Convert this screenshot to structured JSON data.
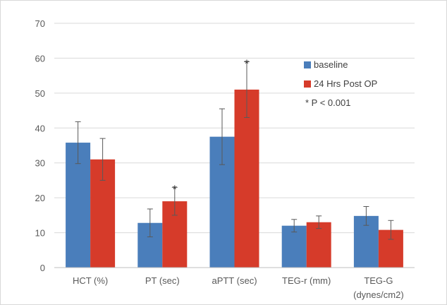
{
  "chart_data": {
    "type": "bar",
    "title": "",
    "xlabel": "",
    "ylabel": "",
    "ylim": [
      0,
      70
    ],
    "yticks": [
      0,
      10,
      20,
      30,
      40,
      50,
      60,
      70
    ],
    "grid": true,
    "categories": [
      "HCT (%)",
      "PT (sec)",
      "aPTT (sec)",
      "TEG-r (mm)",
      "TEG-G (dynes/cm2)"
    ],
    "category_lines": [
      [
        "HCT (%)"
      ],
      [
        "PT (sec)"
      ],
      [
        "aPTT (sec)"
      ],
      [
        "TEG-r (mm)"
      ],
      [
        "TEG-G",
        "(dynes/cm2)"
      ]
    ],
    "series": [
      {
        "name": "baseline",
        "color": "#4a7ebb",
        "values": [
          35.8,
          12.8,
          37.5,
          12.0,
          14.8
        ],
        "error": [
          6.0,
          4.0,
          8.0,
          1.8,
          2.7
        ]
      },
      {
        "name": "24 Hrs Post OP",
        "color": "#d63b2a",
        "values": [
          31.0,
          19.0,
          51.0,
          13.0,
          10.8
        ],
        "error": [
          6.0,
          4.0,
          8.0,
          1.8,
          2.7
        ]
      }
    ],
    "significance": [
      {
        "category_index": 1,
        "series_index": 1,
        "symbol": "*"
      },
      {
        "category_index": 2,
        "series_index": 1,
        "symbol": "*"
      }
    ],
    "legend": {
      "placement": "top-right",
      "note": "*  P < 0.001"
    }
  }
}
